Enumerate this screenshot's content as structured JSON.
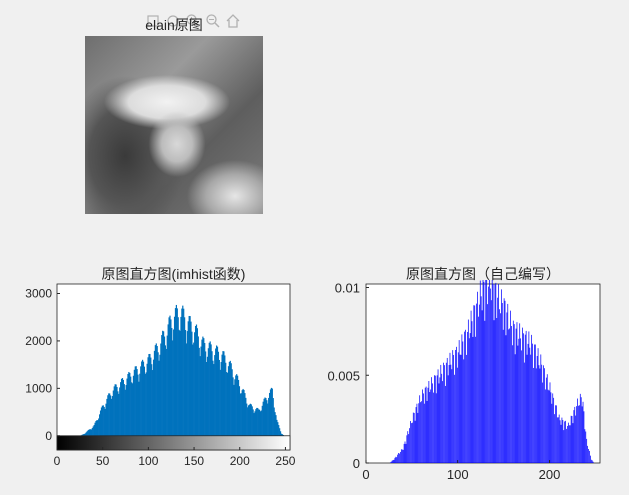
{
  "toolbar": {
    "icons": [
      "figure-toolbar-icon",
      "figure-toolbar-icon",
      "zoom-in-icon",
      "zoom-out-icon",
      "home-icon"
    ]
  },
  "image_panel": {
    "title": "elain原图"
  },
  "chart_data": [
    {
      "type": "area",
      "title": "原图直方图(imhist函数)",
      "xlabel": "",
      "ylabel": "",
      "xlim": [
        0,
        255
      ],
      "ylim": [
        0,
        3200
      ],
      "xticks": [
        "0",
        "50",
        "100",
        "150",
        "200",
        "250"
      ],
      "yticks": [
        "0",
        "1000",
        "2000",
        "3000"
      ],
      "color": "#0072bd",
      "colorbar": "grayscale 0-255",
      "x": [
        0,
        25,
        30,
        40,
        50,
        60,
        70,
        80,
        90,
        100,
        110,
        120,
        125,
        130,
        135,
        140,
        145,
        150,
        160,
        170,
        180,
        190,
        200,
        210,
        220,
        225,
        230,
        235,
        240,
        245,
        248
      ],
      "values": [
        0,
        0,
        50,
        200,
        600,
        900,
        1050,
        1200,
        1350,
        1500,
        1750,
        2100,
        2300,
        2400,
        2450,
        2300,
        2200,
        2100,
        1800,
        1700,
        1600,
        1350,
        1000,
        600,
        500,
        650,
        800,
        900,
        300,
        50,
        0
      ]
    },
    {
      "type": "bar",
      "title": "原图直方图（自己编写）",
      "xlabel": "",
      "ylabel": "",
      "xlim": [
        0,
        255
      ],
      "ylim": [
        0,
        0.0102
      ],
      "xticks": [
        "0",
        "100",
        "200"
      ],
      "yticks": [
        "0",
        "0.005",
        "0.01"
      ],
      "color": "#0000ff",
      "x": [
        0,
        25,
        30,
        40,
        50,
        60,
        70,
        80,
        90,
        100,
        110,
        120,
        125,
        130,
        135,
        140,
        145,
        150,
        160,
        170,
        180,
        190,
        200,
        210,
        220,
        225,
        230,
        235,
        240,
        245,
        248
      ],
      "values": [
        0,
        0,
        0.0002,
        0.0008,
        0.0024,
        0.0036,
        0.0042,
        0.0048,
        0.0054,
        0.006,
        0.007,
        0.0084,
        0.0092,
        0.0096,
        0.0098,
        0.0092,
        0.0088,
        0.0084,
        0.0072,
        0.0068,
        0.0064,
        0.0054,
        0.004,
        0.0024,
        0.002,
        0.0026,
        0.0032,
        0.0036,
        0.0012,
        0.0002,
        0
      ]
    }
  ]
}
